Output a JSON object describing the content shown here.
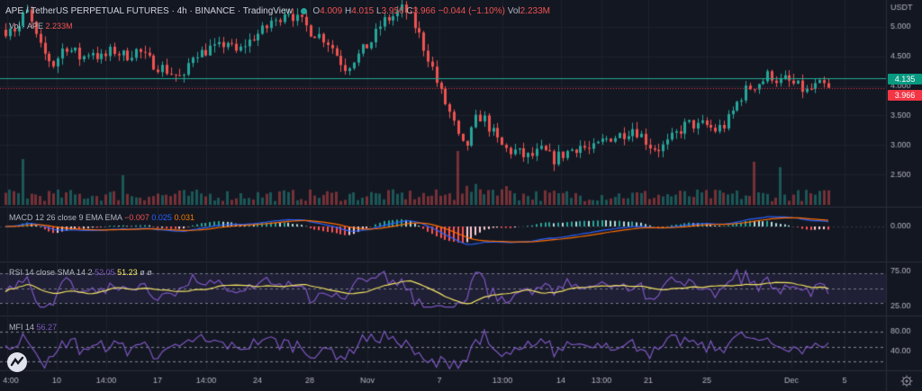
{
  "header": {
    "symbol": "APE / TetherUS PERPETUAL FUTURES · 4h · BINANCE · TradingView",
    "ohlc": [
      {
        "label": "O",
        "value": "4.009"
      },
      {
        "label": "H",
        "value": "4.015"
      },
      {
        "label": "L",
        "value": "3.956"
      },
      {
        "label": "C",
        "value": "3.966"
      }
    ],
    "change": "−0.044 (−1.10%)",
    "vol_label": "Vol",
    "vol_value": "2.233M",
    "volume_legend_name": "Vol · APE",
    "volume_legend_value": "2.233M"
  },
  "price_axis": {
    "currency": "USDT",
    "ticks": [
      "5.000",
      "4.500",
      "4.000",
      "3.500",
      "3.000",
      "2.500"
    ],
    "level_label": "4.135",
    "last_label": "3.966"
  },
  "macd": {
    "name": "MACD",
    "params": "12 26 close 9 EMA EMA",
    "values": [
      "−0.007",
      "0.025",
      "0.031"
    ],
    "axis_tick": "0.000"
  },
  "rsi": {
    "name": "RSI",
    "params": "14 close SMA 14 2",
    "values": [
      "52.05",
      "51.23",
      "ø",
      "ø"
    ],
    "axis_ticks": [
      "75.00",
      "25.00"
    ]
  },
  "mfi": {
    "name": "MFI",
    "params": "14",
    "value": "56.27",
    "axis_ticks": [
      "80.00",
      "40.00"
    ]
  },
  "time_axis": {
    "labels": [
      "4:00",
      "10",
      "14:00",
      "17",
      "14:00",
      "24",
      "28",
      "Nov",
      "7",
      "13:00",
      "14",
      "13:00",
      "21",
      "25",
      "Dec",
      "5"
    ]
  },
  "chart_data": {
    "type": "candlestick",
    "timeframe": "4h",
    "ylim": [
      2.2,
      5.3
    ],
    "horizontal_level": 4.135,
    "last_price": 3.966,
    "close_path": [
      4.95,
      5.05,
      4.9,
      5.15,
      5.25,
      5.0,
      4.7,
      4.55,
      4.45,
      4.35,
      4.55,
      4.7,
      4.6,
      4.55,
      4.45,
      4.55,
      4.6,
      4.5,
      4.45,
      4.55,
      4.6,
      4.55,
      4.5,
      4.55,
      4.6,
      4.55,
      4.45,
      4.4,
      4.35,
      4.3,
      4.25,
      4.2,
      4.15,
      4.1,
      4.45,
      4.6,
      4.55,
      4.6,
      4.65,
      4.6,
      4.7,
      4.75,
      4.6,
      4.55,
      4.7,
      4.75,
      4.85,
      4.9,
      4.95,
      5.1,
      5.05,
      5.25,
      5.3,
      5.2,
      5.1,
      5.05,
      4.95,
      4.9,
      4.85,
      4.8,
      4.7,
      4.55,
      4.4,
      4.3,
      4.45,
      4.5,
      4.6,
      4.7,
      4.8,
      5.0,
      5.1,
      5.15,
      5.2,
      5.3,
      5.25,
      5.1,
      4.95,
      4.7,
      4.5,
      4.25,
      3.95,
      3.75,
      3.55,
      3.3,
      3.0,
      2.95,
      3.2,
      3.45,
      3.5,
      3.35,
      3.2,
      3.05,
      2.95,
      2.9,
      2.9,
      2.85,
      2.8,
      2.8,
      2.85,
      2.9,
      2.85,
      2.75,
      2.8,
      2.85,
      2.9,
      2.95,
      3.0,
      2.95,
      2.9,
      2.95,
      3.05,
      3.1,
      3.15,
      3.15,
      3.2,
      3.25,
      3.3,
      3.2,
      3.1,
      3.0,
      2.95,
      2.95,
      3.0,
      3.1,
      3.2,
      3.3,
      3.35,
      3.35,
      3.3,
      3.35,
      3.3,
      3.25,
      3.3,
      3.35,
      3.5,
      3.7,
      3.85,
      3.95,
      4.0,
      4.05,
      4.1,
      4.2,
      4.15,
      4.05,
      4.1,
      4.05,
      4.0,
      3.95,
      3.9,
      3.95,
      4.0,
      4.0,
      3.97
    ],
    "volume_spikes": [
      {
        "index": 3,
        "relative": 0.85
      },
      {
        "index": 22,
        "relative": 0.55
      },
      {
        "index": 84,
        "relative": 0.9
      },
      {
        "index": 138,
        "relative": 0.8
      },
      {
        "index": 143,
        "relative": 0.7
      }
    ]
  }
}
